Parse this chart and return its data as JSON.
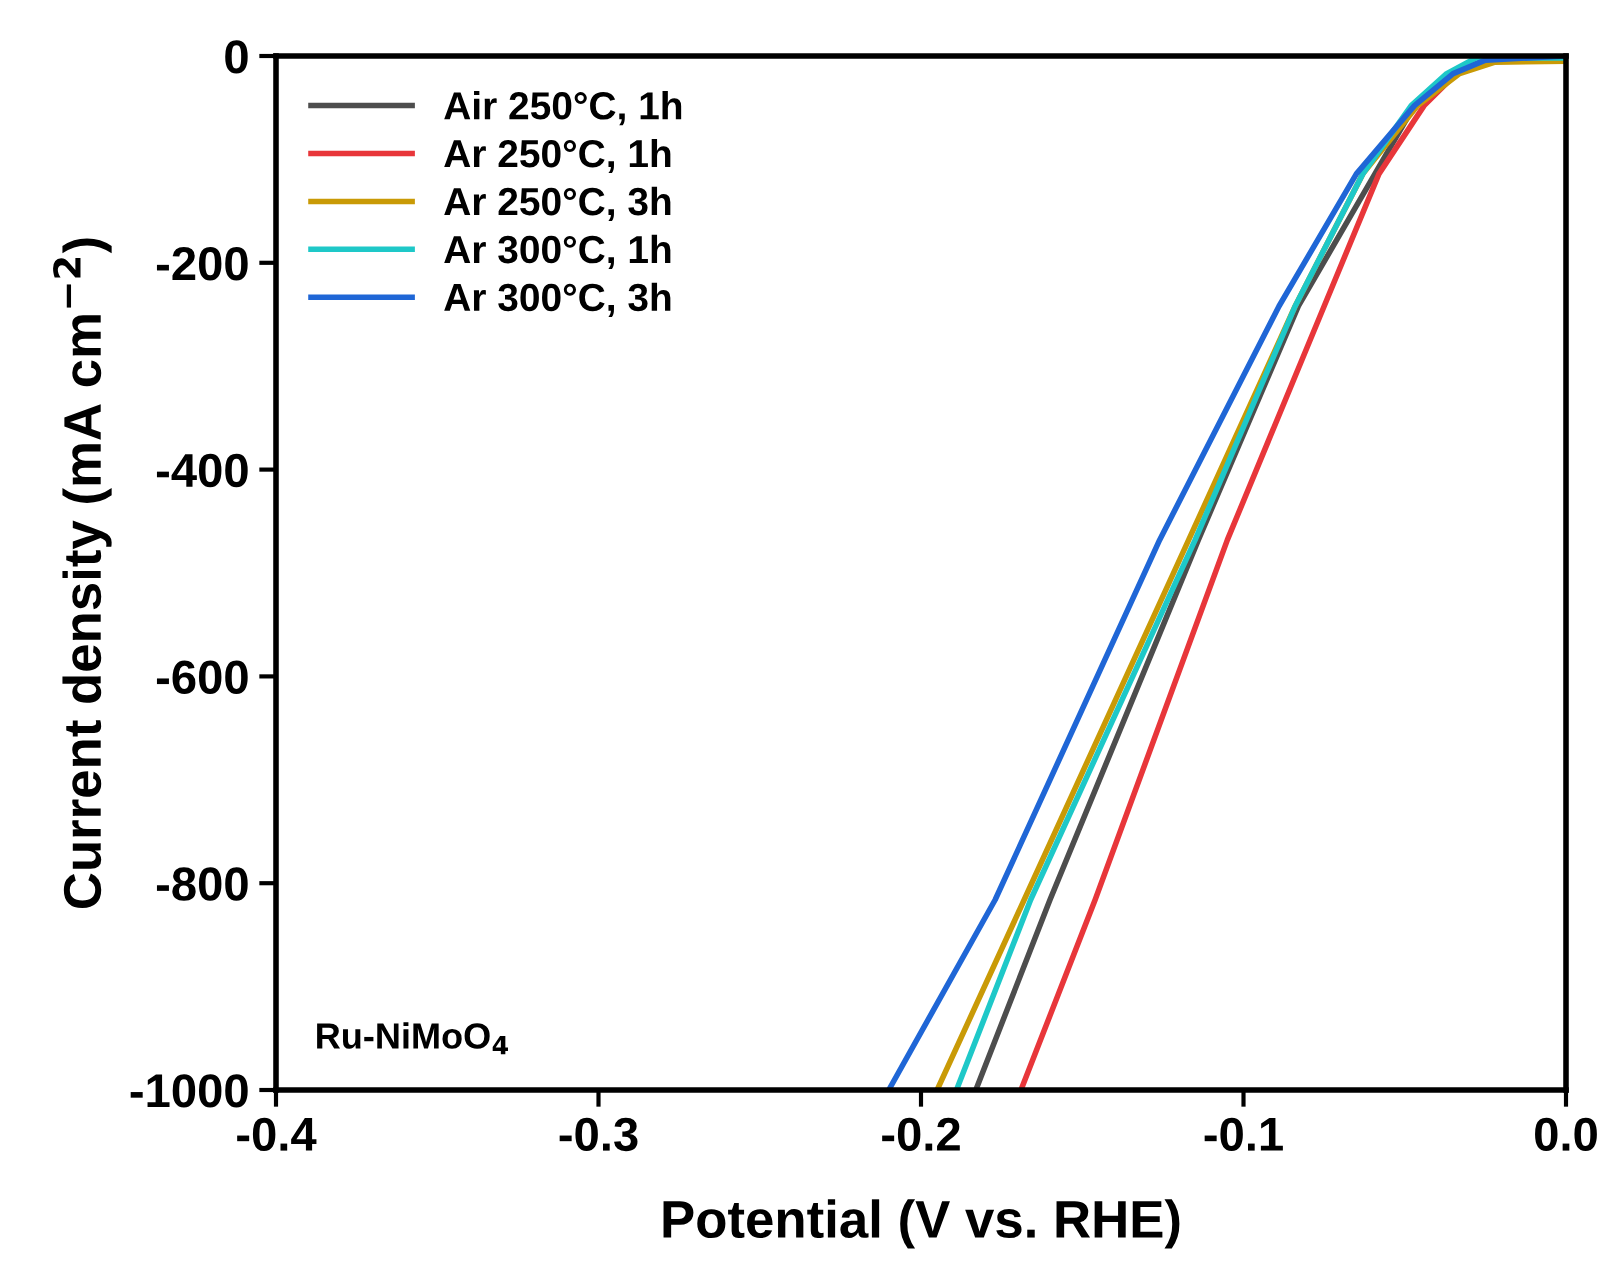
{
  "chart_data": {
    "type": "line",
    "xlabel": "Potential (V vs. RHE)",
    "ylabel": "Current density (mA cm$^{−2}$)",
    "xlim": [
      -0.4,
      0.0
    ],
    "xticks": [
      -0.4,
      -0.3,
      -0.2,
      -0.1,
      {
        "value": 0.0,
        "label": "0.0"
      }
    ],
    "ylim": [
      -1000,
      0
    ],
    "yticks": [
      -1000,
      -800,
      -600,
      -400,
      -200,
      0
    ],
    "grid": false,
    "legend": "top left",
    "line_style": "solid",
    "marker": "none",
    "annotations": [
      "Ru-NiMoO$_{4}$"
    ],
    "series": [
      {
        "name": "Air 250°C, 1h",
        "color": "#4d4d4d",
        "x": [
          -0.183,
          -0.16,
          -0.114,
          -0.083,
          -0.047,
          -0.035,
          -0.025,
          0.0
        ],
        "values": [
          -1000,
          -816,
          -468,
          -242,
          -48,
          -17,
          -4,
          0
        ]
      },
      {
        "name": "Ar 250°C, 1h",
        "color": "#e8363a",
        "x": [
          -0.169,
          -0.146,
          -0.105,
          -0.075,
          -0.058,
          -0.044,
          -0.034,
          -0.025,
          0.0
        ],
        "values": [
          -1000,
          -816,
          -468,
          -242,
          -114,
          -48,
          -17,
          -4,
          0
        ]
      },
      {
        "name": "Ar 250°C, 3h",
        "color": "#c99a06",
        "x": [
          -0.195,
          -0.168,
          -0.117,
          -0.084,
          -0.063,
          -0.046,
          -0.033,
          -0.022,
          0.0
        ],
        "values": [
          -1000,
          -816,
          -468,
          -242,
          -114,
          -48,
          -17,
          -6,
          -5
        ]
      },
      {
        "name": "Ar 300°C, 1h",
        "color": "#1ec8c8",
        "x": [
          -0.189,
          -0.166,
          -0.115,
          -0.084,
          -0.063,
          -0.048,
          -0.037,
          -0.028,
          0.0
        ],
        "values": [
          -1000,
          -816,
          -468,
          -242,
          -114,
          -48,
          -17,
          -2,
          -2
        ]
      },
      {
        "name": "Ar 300°C, 3h",
        "color": "#1f66d6",
        "x": [
          -0.21,
          -0.177,
          -0.126,
          -0.089,
          -0.065,
          -0.047,
          -0.035,
          -0.025,
          0.0
        ],
        "values": [
          -1000,
          -816,
          -468,
          -242,
          -114,
          -48,
          -17,
          -4,
          0
        ]
      }
    ]
  }
}
